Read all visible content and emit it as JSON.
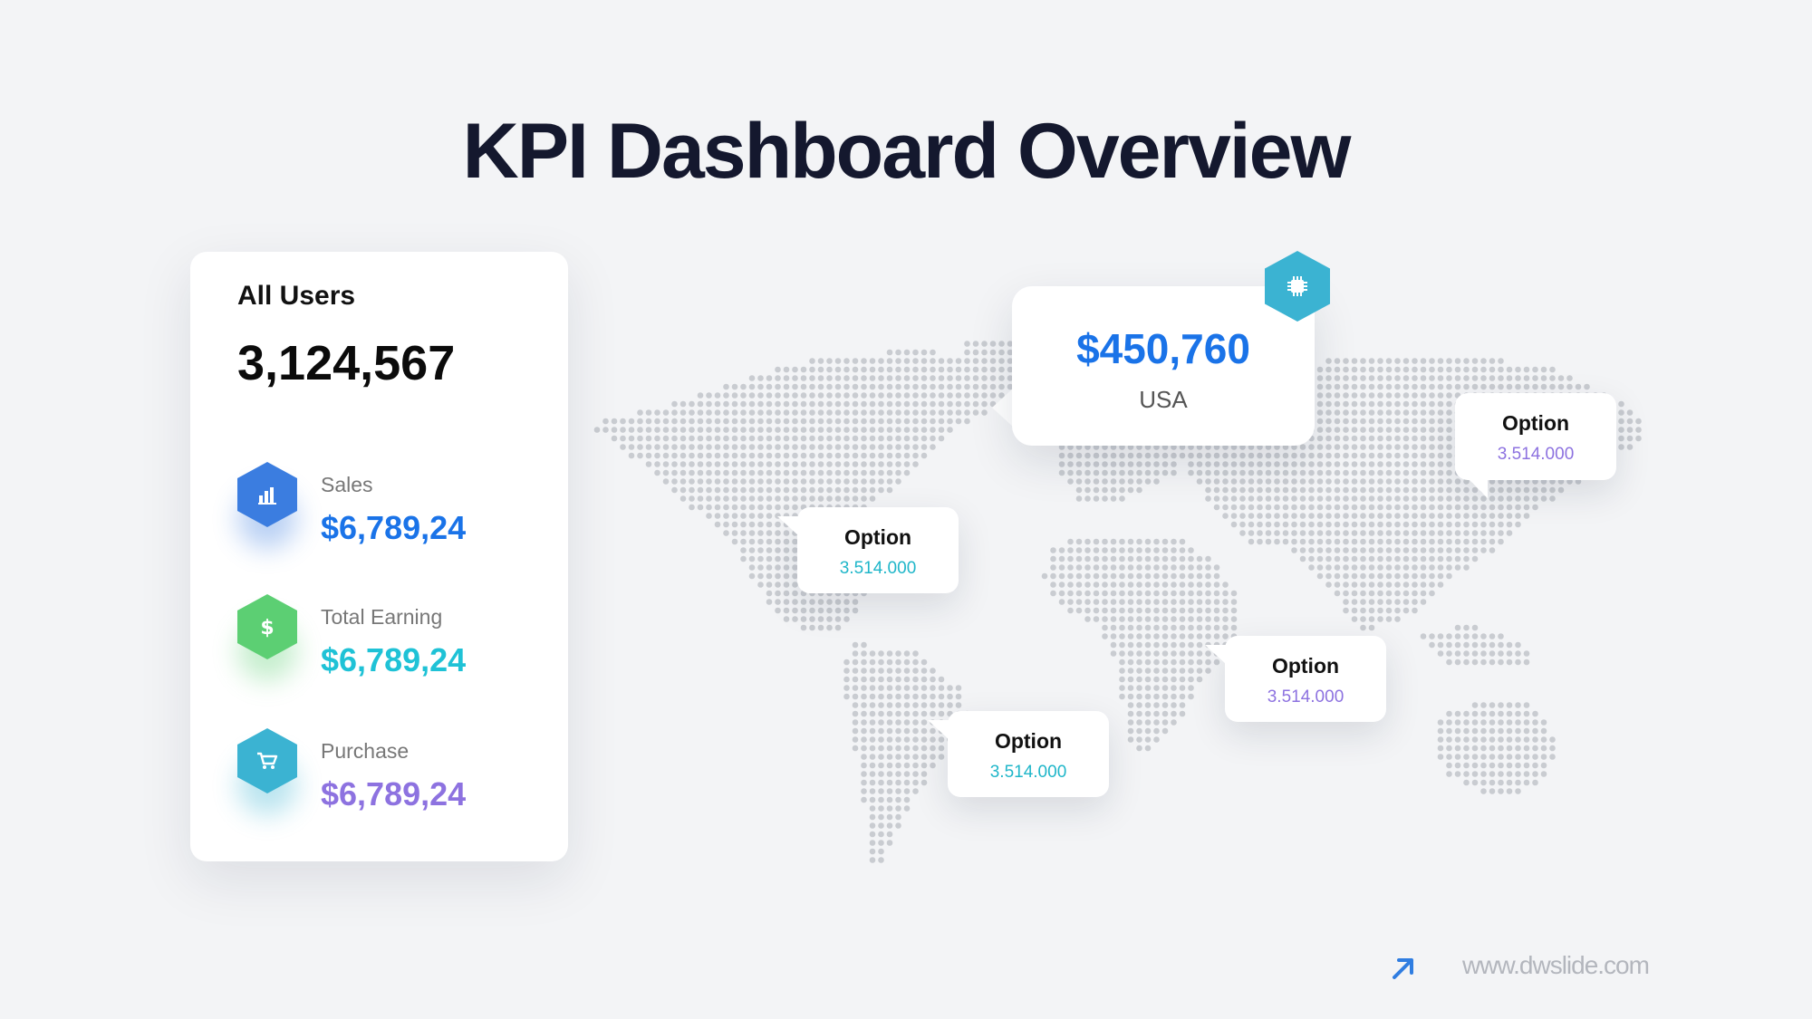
{
  "title": "KPI Dashboard Overview",
  "card": {
    "label": "All Users",
    "total": "3,124,567",
    "kpis": [
      {
        "name": "Sales",
        "value": "$6,789,24",
        "color": "#1a73e8",
        "icon_color": "#3b7de0",
        "icon": "bar-chart-icon"
      },
      {
        "name": "Total Earning",
        "value": "$6,789,24",
        "color": "#1fc2d6",
        "icon_color": "#5ccf73",
        "icon": "dollar-icon"
      },
      {
        "name": "Purchase",
        "value": "$6,789,24",
        "color": "#8d72e0",
        "icon_color": "#3bb3d2",
        "icon": "cart-icon"
      }
    ]
  },
  "main_callout": {
    "value": "$450,760",
    "country": "USA",
    "icon": "chip-icon"
  },
  "options": [
    {
      "title": "Option",
      "value": "3.514.000",
      "color": "#1fb6c9"
    },
    {
      "title": "Option",
      "value": "3.514.000",
      "color": "#8d72e0"
    },
    {
      "title": "Option",
      "value": "3.514.000",
      "color": "#8d72e0"
    },
    {
      "title": "Option",
      "value": "3.514.000",
      "color": "#1fb6c9"
    }
  ],
  "footer": {
    "url": "www.dwslide.com",
    "icon": "arrow-up-right-icon"
  }
}
